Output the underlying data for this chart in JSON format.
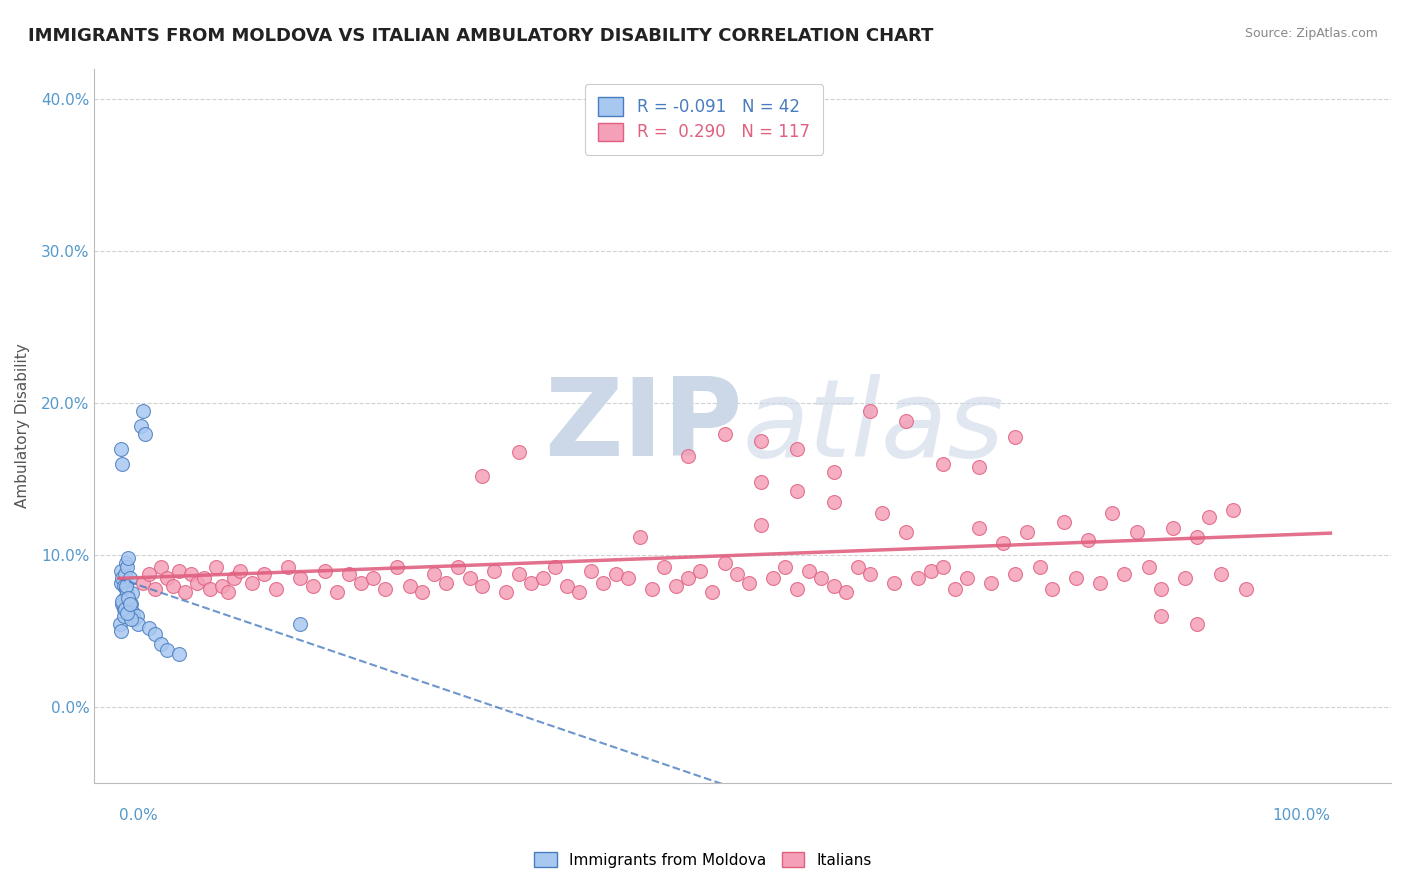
{
  "title": "IMMIGRANTS FROM MOLDOVA VS ITALIAN AMBULATORY DISABILITY CORRELATION CHART",
  "source": "Source: ZipAtlas.com",
  "ylabel": "Ambulatory Disability",
  "legend_label1": "Immigrants from Moldova",
  "legend_label2": "Italians",
  "r1": -0.091,
  "n1": 42,
  "r2": 0.29,
  "n2": 117,
  "color_blue": "#a8c8f0",
  "color_pink": "#f4a0b8",
  "color_blue_dark": "#4a7cc0",
  "color_pink_dark": "#e06080",
  "background": "#ffffff",
  "grid_color": "#cccccc",
  "watermark_color": "#ccd8e8",
  "ymax": 0.42,
  "ymin": -0.05,
  "xmax": 1.05,
  "xmin": -0.02,
  "blue_points_x": [
    0.001,
    0.002,
    0.002,
    0.003,
    0.003,
    0.004,
    0.004,
    0.005,
    0.005,
    0.006,
    0.006,
    0.007,
    0.007,
    0.008,
    0.008,
    0.009,
    0.01,
    0.011,
    0.012,
    0.013,
    0.015,
    0.016,
    0.018,
    0.02,
    0.022,
    0.025,
    0.03,
    0.035,
    0.04,
    0.05,
    0.002,
    0.003,
    0.004,
    0.005,
    0.006,
    0.008,
    0.01,
    0.15,
    0.002,
    0.003,
    0.007,
    0.009
  ],
  "blue_points_y": [
    0.055,
    0.09,
    0.082,
    0.085,
    0.068,
    0.08,
    0.065,
    0.088,
    0.072,
    0.095,
    0.078,
    0.092,
    0.075,
    0.098,
    0.07,
    0.085,
    0.068,
    0.075,
    0.062,
    0.058,
    0.06,
    0.055,
    0.185,
    0.195,
    0.18,
    0.052,
    0.048,
    0.042,
    0.038,
    0.035,
    0.05,
    0.07,
    0.06,
    0.065,
    0.08,
    0.072,
    0.058,
    0.055,
    0.17,
    0.16,
    0.062,
    0.068
  ],
  "pink_points_x": [
    0.02,
    0.025,
    0.03,
    0.035,
    0.04,
    0.045,
    0.05,
    0.055,
    0.06,
    0.065,
    0.07,
    0.075,
    0.08,
    0.085,
    0.09,
    0.095,
    0.1,
    0.11,
    0.12,
    0.13,
    0.14,
    0.15,
    0.16,
    0.17,
    0.18,
    0.19,
    0.2,
    0.21,
    0.22,
    0.23,
    0.24,
    0.25,
    0.26,
    0.27,
    0.28,
    0.29,
    0.3,
    0.31,
    0.32,
    0.33,
    0.34,
    0.35,
    0.36,
    0.37,
    0.38,
    0.39,
    0.4,
    0.41,
    0.42,
    0.43,
    0.44,
    0.45,
    0.46,
    0.47,
    0.48,
    0.49,
    0.5,
    0.51,
    0.52,
    0.53,
    0.54,
    0.55,
    0.56,
    0.57,
    0.58,
    0.59,
    0.6,
    0.61,
    0.62,
    0.63,
    0.64,
    0.65,
    0.66,
    0.67,
    0.68,
    0.69,
    0.7,
    0.71,
    0.72,
    0.73,
    0.74,
    0.75,
    0.76,
    0.77,
    0.78,
    0.79,
    0.8,
    0.81,
    0.82,
    0.83,
    0.84,
    0.85,
    0.86,
    0.87,
    0.88,
    0.89,
    0.9,
    0.91,
    0.92,
    0.93,
    0.47,
    0.5,
    0.53,
    0.56,
    0.59,
    0.62,
    0.65,
    0.68,
    0.71,
    0.74,
    0.53,
    0.56,
    0.59,
    0.3,
    0.33,
    0.86,
    0.89
  ],
  "pink_points_y": [
    0.082,
    0.088,
    0.078,
    0.092,
    0.085,
    0.08,
    0.09,
    0.076,
    0.088,
    0.082,
    0.085,
    0.078,
    0.092,
    0.08,
    0.076,
    0.085,
    0.09,
    0.082,
    0.088,
    0.078,
    0.092,
    0.085,
    0.08,
    0.09,
    0.076,
    0.088,
    0.082,
    0.085,
    0.078,
    0.092,
    0.08,
    0.076,
    0.088,
    0.082,
    0.092,
    0.085,
    0.08,
    0.09,
    0.076,
    0.088,
    0.082,
    0.085,
    0.092,
    0.08,
    0.076,
    0.09,
    0.082,
    0.088,
    0.085,
    0.112,
    0.078,
    0.092,
    0.08,
    0.085,
    0.09,
    0.076,
    0.095,
    0.088,
    0.082,
    0.12,
    0.085,
    0.092,
    0.078,
    0.09,
    0.085,
    0.08,
    0.076,
    0.092,
    0.088,
    0.128,
    0.082,
    0.115,
    0.085,
    0.09,
    0.092,
    0.078,
    0.085,
    0.118,
    0.082,
    0.108,
    0.088,
    0.115,
    0.092,
    0.078,
    0.122,
    0.085,
    0.11,
    0.082,
    0.128,
    0.088,
    0.115,
    0.092,
    0.078,
    0.118,
    0.085,
    0.112,
    0.125,
    0.088,
    0.13,
    0.078,
    0.165,
    0.18,
    0.175,
    0.17,
    0.155,
    0.195,
    0.188,
    0.16,
    0.158,
    0.178,
    0.148,
    0.142,
    0.135,
    0.152,
    0.168,
    0.06,
    0.055
  ],
  "blue_trend_x": [
    0.0,
    0.25
  ],
  "blue_trend_y": [
    0.09,
    0.05
  ],
  "pink_trend_x0": 0.0,
  "pink_trend_y0": 0.075,
  "pink_trend_x1": 1.0,
  "pink_trend_y1": 0.107
}
